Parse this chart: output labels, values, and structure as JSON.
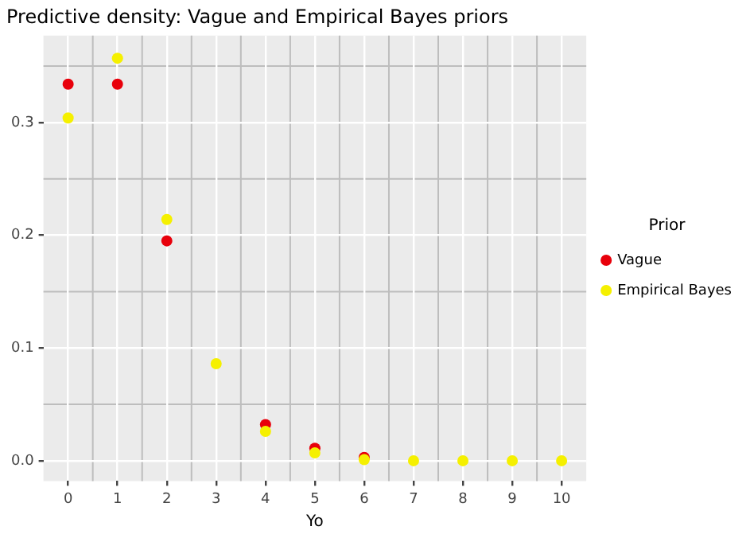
{
  "chart_data": {
    "type": "scatter",
    "title": "Predictive density: Vague and Empirical Bayes priors",
    "xlabel": "Yo",
    "legend_title": "Prior",
    "legend": "right",
    "grid": true,
    "marker": "circle",
    "x": [
      0,
      1,
      2,
      3,
      4,
      5,
      6,
      7,
      8,
      9,
      10
    ],
    "series": [
      {
        "name": "Vague",
        "color": "#e8000b",
        "values": [
          0.334,
          0.334,
          0.195,
          null,
          0.032,
          0.011,
          0.003,
          null,
          null,
          null,
          null
        ]
      },
      {
        "name": "Empirical Bayes",
        "color": "#f5f000",
        "values": [
          0.304,
          0.357,
          0.214,
          0.086,
          0.026,
          0.007,
          0.001,
          0.0,
          0.0,
          0.0,
          0.0
        ]
      }
    ],
    "xlim": [
      -0.5,
      10.5
    ],
    "xticks": [
      0,
      1,
      2,
      3,
      4,
      5,
      6,
      7,
      8,
      9,
      10
    ],
    "ylim": [
      -0.018,
      0.377
    ],
    "yticks": [
      {
        "value": 0,
        "label": "0.0"
      },
      0.1,
      0.2,
      0.3
    ]
  }
}
